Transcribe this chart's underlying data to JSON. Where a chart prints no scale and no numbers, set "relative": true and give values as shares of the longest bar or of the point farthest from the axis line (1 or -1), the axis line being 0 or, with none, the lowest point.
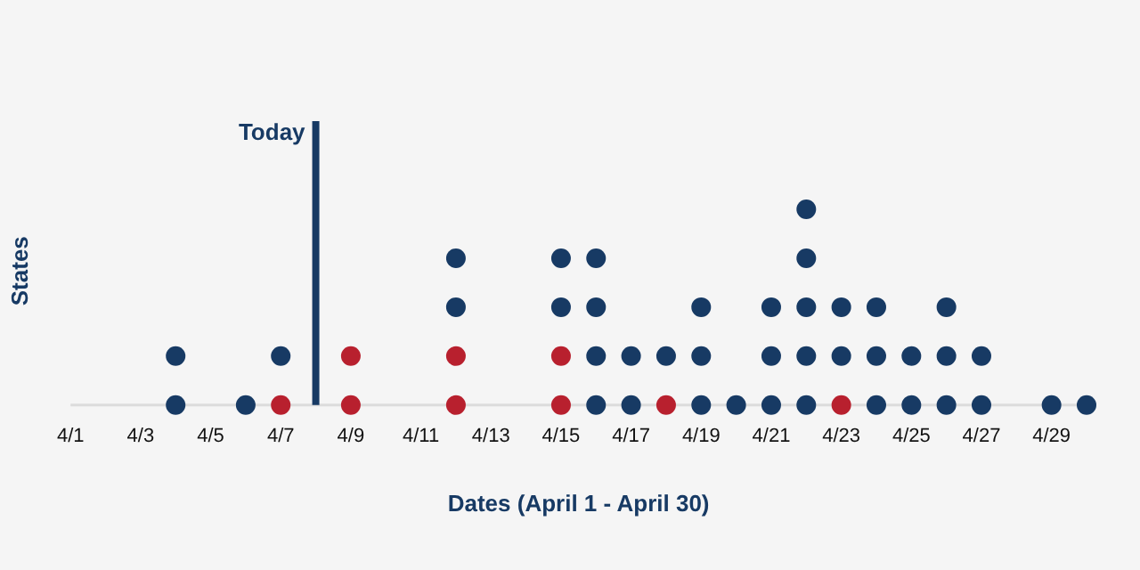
{
  "chart_data": {
    "type": "scatter",
    "relative": true,
    "xlabel": "Dates (April 1 - April 30)",
    "ylabel": "States",
    "marker": "circle",
    "legend": false,
    "grid": false,
    "xlim": [
      "--04-01",
      "--04-30"
    ],
    "xticks": [
      {
        "value": "--04-01",
        "label": "4/1"
      },
      {
        "value": "--04-03",
        "label": "4/3"
      },
      {
        "value": "--04-05",
        "label": "4/5"
      },
      {
        "value": "--04-07",
        "label": "4/7"
      },
      {
        "value": "--04-09",
        "label": "4/9"
      },
      {
        "value": "--04-11",
        "label": "4/11"
      },
      {
        "value": "--04-13",
        "label": "4/13"
      },
      {
        "value": "--04-15",
        "label": "4/15"
      },
      {
        "value": "--04-17",
        "label": "4/17"
      },
      {
        "value": "--04-19",
        "label": "4/19"
      },
      {
        "value": "--04-21",
        "label": "4/21"
      },
      {
        "value": "--04-23",
        "label": "4/23"
      },
      {
        "value": "--04-25",
        "label": "4/25"
      },
      {
        "value": "--04-27",
        "label": "4/27"
      },
      {
        "value": "--04-29",
        "label": "4/29"
      }
    ],
    "ref_lines": [
      {
        "axis": "x",
        "value": "--04-08",
        "label": "Today",
        "color": "#173a64"
      }
    ],
    "series": [
      {
        "color": "#173a64",
        "x": [
          "--04-04",
          "--04-04",
          "--04-06",
          "--04-07",
          "--04-12",
          "--04-12",
          "--04-15",
          "--04-15",
          "--04-16",
          "--04-16",
          "--04-16",
          "--04-16",
          "--04-17",
          "--04-17",
          "--04-18",
          "--04-19",
          "--04-19",
          "--04-19",
          "--04-20",
          "--04-21",
          "--04-21",
          "--04-21",
          "--04-22",
          "--04-22",
          "--04-22",
          "--04-22",
          "--04-22",
          "--04-23",
          "--04-23",
          "--04-24",
          "--04-24",
          "--04-24",
          "--04-25",
          "--04-25",
          "--04-26",
          "--04-26",
          "--04-26",
          "--04-27",
          "--04-27",
          "--04-29",
          "--04-30"
        ],
        "values": [
          0,
          0.25,
          0,
          0.25,
          0.5,
          0.75,
          0.5,
          0.75,
          0,
          0.25,
          0.5,
          0.75,
          0,
          0.25,
          0.25,
          0,
          0.25,
          0.5,
          0,
          0,
          0.25,
          0.5,
          0,
          0.25,
          0.5,
          0.75,
          1,
          0.25,
          0.5,
          0,
          0.25,
          0.5,
          0,
          0.25,
          0,
          0.25,
          0.5,
          0,
          0.25,
          0,
          0
        ]
      },
      {
        "color": "#b8202e",
        "x": [
          "--04-07",
          "--04-09",
          "--04-09",
          "--04-12",
          "--04-12",
          "--04-15",
          "--04-15",
          "--04-18",
          "--04-23"
        ],
        "values": [
          0,
          0,
          0.25,
          0,
          0.25,
          0,
          0.25,
          0,
          0
        ]
      }
    ]
  }
}
